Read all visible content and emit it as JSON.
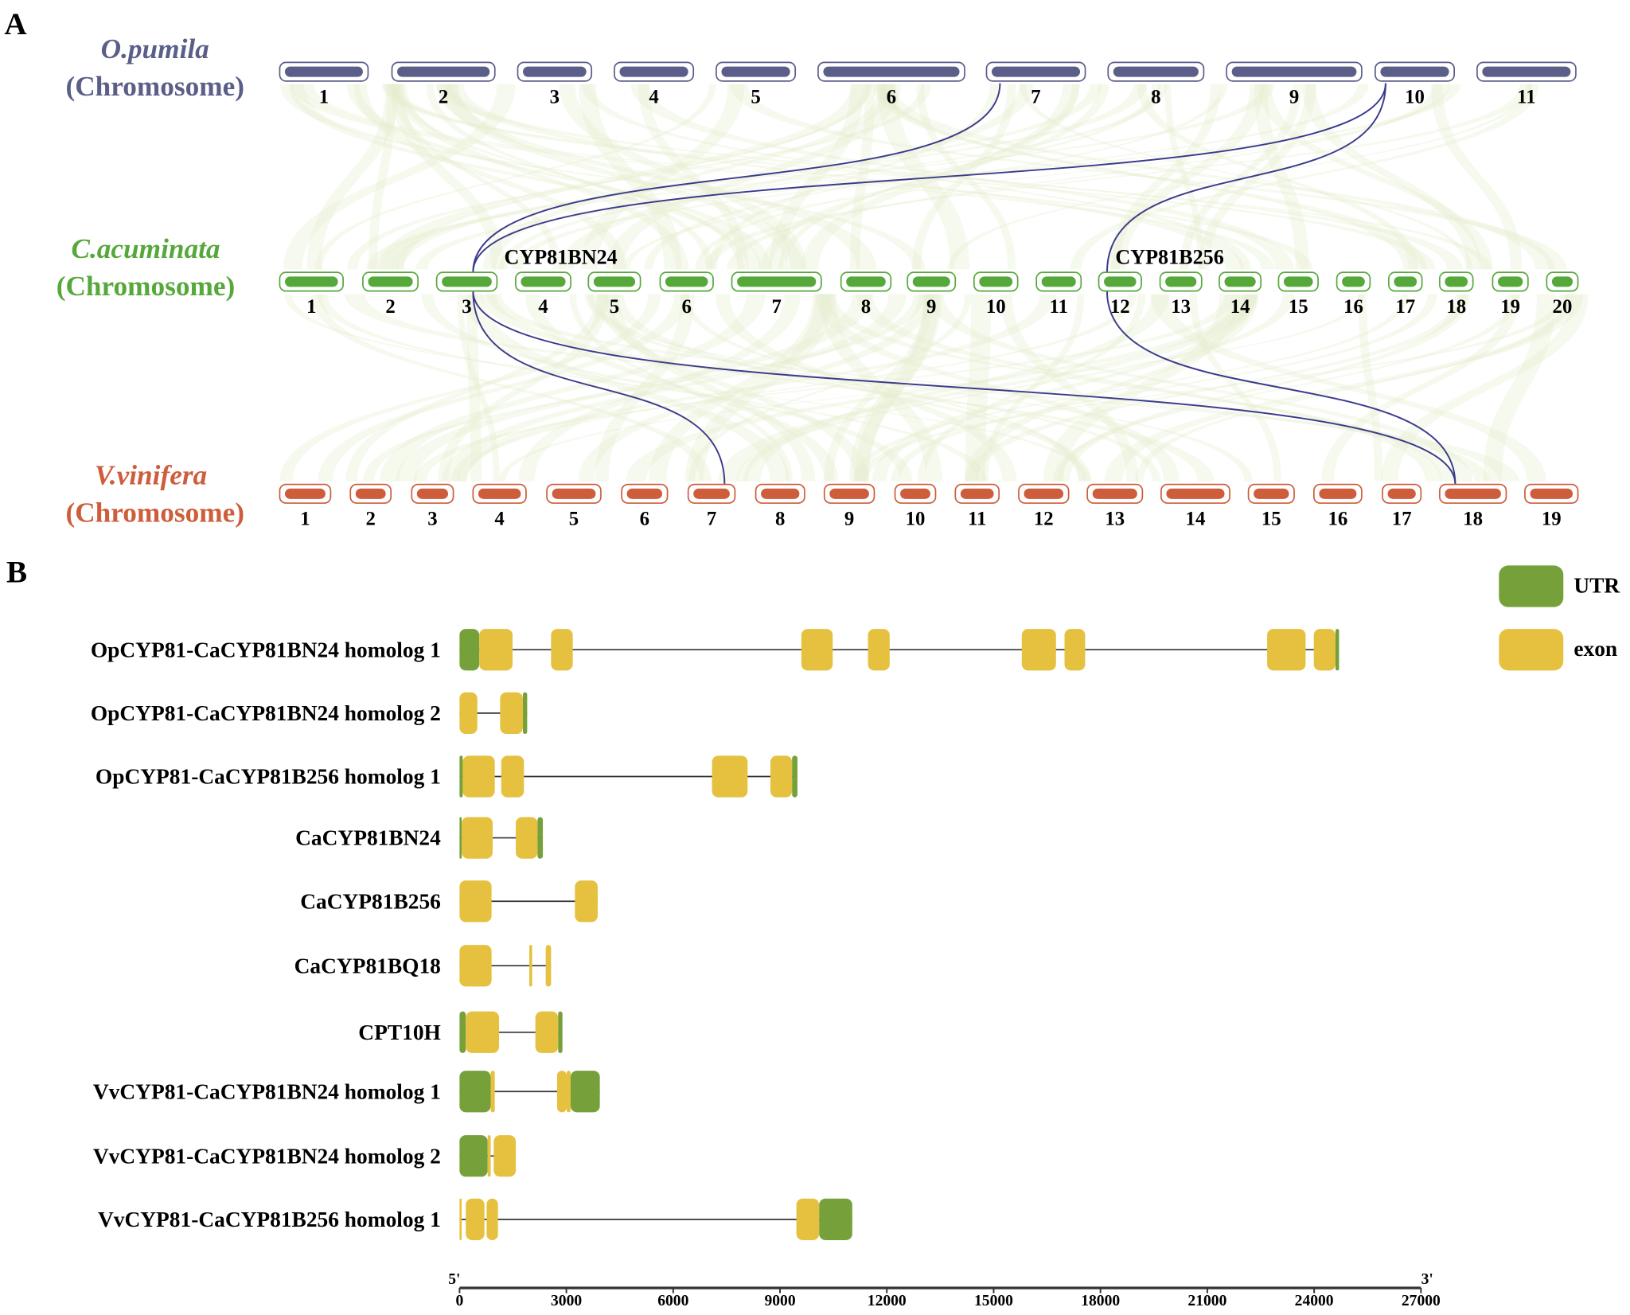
{
  "panel_a": {
    "label": "A",
    "species": [
      {
        "name": "O.pumila",
        "sub": "(Chromosome)",
        "color": "#5a5e88",
        "chromosomes": [
          "1",
          "2",
          "3",
          "4",
          "5",
          "6",
          "7",
          "8",
          "9",
          "10",
          "11"
        ]
      },
      {
        "name": "C.acuminata",
        "sub": "(Chromosome)",
        "color": "#56a83b",
        "chromosomes": [
          "1",
          "2",
          "3",
          "4",
          "5",
          "6",
          "7",
          "8",
          "9",
          "10",
          "11",
          "12",
          "13",
          "14",
          "15",
          "16",
          "17",
          "18",
          "19",
          "20"
        ]
      },
      {
        "name": "V.vinifera",
        "sub": "(Chromosome)",
        "color": "#cd5d3b",
        "chromosomes": [
          "1",
          "2",
          "3",
          "4",
          "5",
          "6",
          "7",
          "8",
          "9",
          "10",
          "11",
          "12",
          "13",
          "14",
          "15",
          "16",
          "17",
          "18",
          "19"
        ]
      }
    ],
    "gene_labels": [
      "CYP81BN24",
      "CYP81B256"
    ],
    "link_color": "#3b3b8c",
    "links": [
      {
        "from": "O.pumila chr7",
        "to": "C.acuminata chr3"
      },
      {
        "from": "O.pumila chr10",
        "to": "C.acuminata chr3"
      },
      {
        "from": "O.pumila chr10",
        "to": "C.acuminata chr12"
      },
      {
        "from": "C.acuminata chr3",
        "to": "V.vinifera chr7"
      },
      {
        "from": "C.acuminata chr3",
        "to": "V.vinifera chr18"
      },
      {
        "from": "C.acuminata chr12",
        "to": "V.vinifera chr18"
      }
    ]
  },
  "panel_b": {
    "label": "B",
    "legend": [
      {
        "label": "UTR",
        "color": "#76a13a"
      },
      {
        "label": "exon",
        "color": "#e5c13f"
      }
    ],
    "axis": {
      "start_label": "5'",
      "end_label": "3'",
      "min": 0,
      "max": 27000,
      "ticks": [
        "0",
        "3000",
        "6000",
        "9000",
        "12000",
        "15000",
        "18000",
        "21000",
        "24000",
        "27000"
      ]
    },
    "genes": [
      {
        "name": "OpCYP81-CaCYP81BN24 homolog 1",
        "features": [
          [
            "UTR",
            0,
            555
          ],
          [
            "exon",
            555,
            1490
          ],
          [
            "exon",
            2570,
            3180
          ],
          [
            "exon",
            9600,
            10480
          ],
          [
            "exon",
            11470,
            12080
          ],
          [
            "exon",
            15790,
            16750
          ],
          [
            "exon",
            16990,
            17570
          ],
          [
            "exon",
            22680,
            23760
          ],
          [
            "exon",
            23990,
            24600
          ],
          [
            "UTR",
            24600,
            24700
          ]
        ]
      },
      {
        "name": "OpCYP81-CaCYP81BN24 homolog 2",
        "features": [
          [
            "exon",
            0,
            500
          ],
          [
            "exon",
            1140,
            1780
          ],
          [
            "UTR",
            1780,
            1900
          ]
        ]
      },
      {
        "name": "OpCYP81-CaCYP81B256 homolog 1",
        "features": [
          [
            "UTR",
            0,
            90
          ],
          [
            "exon",
            90,
            990
          ],
          [
            "exon",
            1170,
            1810
          ],
          [
            "exon",
            7090,
            8090
          ],
          [
            "exon",
            8730,
            9340
          ],
          [
            "UTR",
            9340,
            9490
          ]
        ]
      },
      {
        "name": "CaCYP81BN24",
        "features": [
          [
            "UTR",
            0,
            60
          ],
          [
            "exon",
            60,
            930
          ],
          [
            "exon",
            1580,
            2190
          ],
          [
            "UTR",
            2190,
            2340
          ]
        ]
      },
      {
        "name": "CaCYP81B256",
        "features": [
          [
            "exon",
            0,
            900
          ],
          [
            "exon",
            3240,
            3880
          ]
        ]
      },
      {
        "name": "CaCYP81BQ18",
        "features": [
          [
            "exon",
            0,
            900
          ],
          [
            "exon",
            1960,
            2040
          ],
          [
            "exon",
            2420,
            2570
          ]
        ]
      },
      {
        "name": "CPT10H",
        "features": [
          [
            "UTR",
            0,
            175
          ],
          [
            "exon",
            175,
            1110
          ],
          [
            "exon",
            2130,
            2770
          ],
          [
            "UTR",
            2770,
            2890
          ]
        ]
      },
      {
        "name": "VvCYP81-CaCYP81BN24 homolog 1",
        "features": [
          [
            "UTR",
            0,
            875
          ],
          [
            "exon",
            875,
            990
          ],
          [
            "exon",
            2740,
            3010
          ],
          [
            "exon",
            3010,
            3120
          ],
          [
            "UTR",
            3120,
            3940
          ]
        ]
      },
      {
        "name": "VvCYP81-CaCYP81BN24 homolog 2",
        "features": [
          [
            "UTR",
            0,
            790
          ],
          [
            "exon",
            790,
            875
          ],
          [
            "exon",
            960,
            1580
          ]
        ]
      },
      {
        "name": "VvCYP81-CaCYP81B256 homolog 1",
        "features": [
          [
            "exon",
            0,
            60
          ],
          [
            "exon",
            175,
            700
          ],
          [
            "exon",
            760,
            1080
          ],
          [
            "exon",
            9460,
            10100
          ],
          [
            "UTR",
            10100,
            11030
          ]
        ]
      }
    ]
  }
}
